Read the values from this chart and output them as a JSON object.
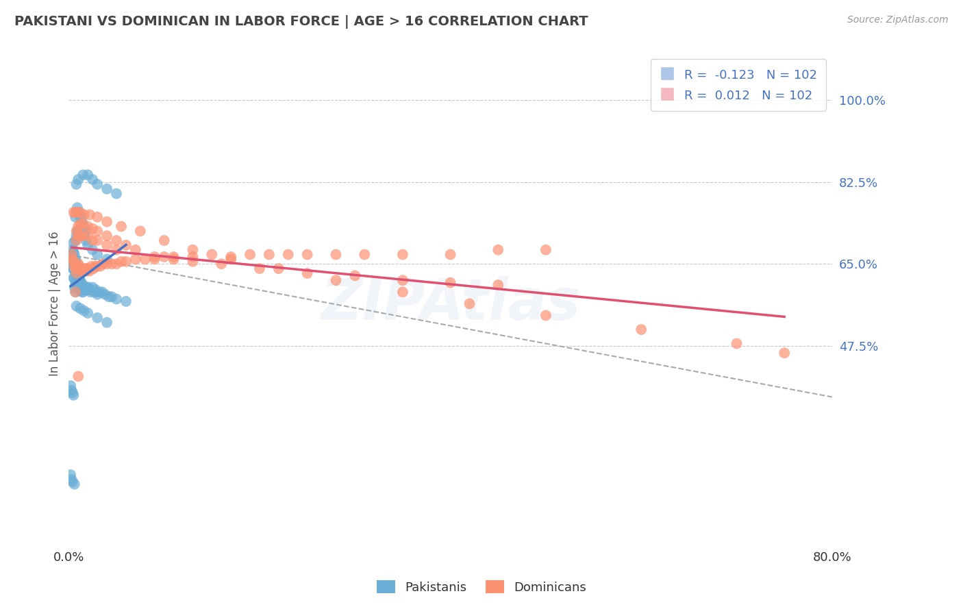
{
  "title": "PAKISTANI VS DOMINICAN IN LABOR FORCE | AGE > 16 CORRELATION CHART",
  "source": "Source: ZipAtlas.com",
  "ylabel": "In Labor Force | Age > 16",
  "xlim": [
    0.0,
    0.8
  ],
  "ylim": [
    0.05,
    1.08
  ],
  "yticks": [
    0.475,
    0.65,
    0.825,
    1.0
  ],
  "ytick_labels": [
    "47.5%",
    "65.0%",
    "82.5%",
    "100.0%"
  ],
  "xticks": [
    0.0,
    0.8
  ],
  "xtick_labels": [
    "0.0%",
    "80.0%"
  ],
  "pakistani_color": "#6baed6",
  "dominican_color": "#fc9272",
  "pakistani_R": -0.123,
  "pakistani_N": 102,
  "dominican_R": 0.012,
  "dominican_N": 102,
  "background_color": "#ffffff",
  "grid_color": "#c8c8c8",
  "title_color": "#444444",
  "label_color": "#4472c4",
  "pakistani_x": [
    0.003,
    0.003,
    0.004,
    0.004,
    0.004,
    0.005,
    0.005,
    0.005,
    0.005,
    0.005,
    0.006,
    0.006,
    0.006,
    0.006,
    0.006,
    0.007,
    0.007,
    0.007,
    0.007,
    0.007,
    0.008,
    0.008,
    0.008,
    0.008,
    0.009,
    0.009,
    0.009,
    0.01,
    0.01,
    0.01,
    0.011,
    0.011,
    0.012,
    0.012,
    0.013,
    0.013,
    0.014,
    0.015,
    0.015,
    0.016,
    0.017,
    0.018,
    0.019,
    0.02,
    0.021,
    0.022,
    0.023,
    0.025,
    0.027,
    0.028,
    0.03,
    0.032,
    0.035,
    0.038,
    0.042,
    0.045,
    0.05,
    0.06,
    0.007,
    0.008,
    0.009,
    0.01,
    0.012,
    0.014,
    0.016,
    0.018,
    0.02,
    0.025,
    0.03,
    0.04,
    0.007,
    0.008,
    0.009,
    0.01,
    0.012,
    0.014,
    0.016,
    0.018,
    0.008,
    0.01,
    0.015,
    0.02,
    0.025,
    0.03,
    0.04,
    0.05,
    0.008,
    0.012,
    0.016,
    0.02,
    0.03,
    0.04,
    0.002,
    0.003,
    0.004,
    0.005,
    0.002,
    0.003,
    0.004,
    0.006
  ],
  "pakistani_y": [
    0.655,
    0.67,
    0.64,
    0.66,
    0.68,
    0.62,
    0.64,
    0.66,
    0.675,
    0.695,
    0.6,
    0.62,
    0.64,
    0.655,
    0.67,
    0.59,
    0.61,
    0.63,
    0.645,
    0.66,
    0.61,
    0.625,
    0.64,
    0.655,
    0.6,
    0.615,
    0.635,
    0.6,
    0.62,
    0.64,
    0.6,
    0.615,
    0.595,
    0.615,
    0.595,
    0.61,
    0.59,
    0.59,
    0.605,
    0.6,
    0.595,
    0.595,
    0.6,
    0.595,
    0.6,
    0.595,
    0.59,
    0.6,
    0.59,
    0.595,
    0.585,
    0.59,
    0.59,
    0.585,
    0.58,
    0.58,
    0.575,
    0.57,
    0.7,
    0.71,
    0.72,
    0.72,
    0.72,
    0.71,
    0.71,
    0.7,
    0.69,
    0.68,
    0.67,
    0.66,
    0.75,
    0.76,
    0.77,
    0.76,
    0.75,
    0.74,
    0.73,
    0.72,
    0.82,
    0.83,
    0.84,
    0.84,
    0.83,
    0.82,
    0.81,
    0.8,
    0.56,
    0.555,
    0.55,
    0.545,
    0.535,
    0.525,
    0.39,
    0.38,
    0.375,
    0.37,
    0.2,
    0.19,
    0.185,
    0.18
  ],
  "dominican_x": [
    0.003,
    0.004,
    0.005,
    0.006,
    0.007,
    0.008,
    0.009,
    0.01,
    0.011,
    0.012,
    0.013,
    0.014,
    0.015,
    0.016,
    0.017,
    0.018,
    0.019,
    0.02,
    0.022,
    0.024,
    0.026,
    0.028,
    0.03,
    0.033,
    0.036,
    0.04,
    0.045,
    0.05,
    0.055,
    0.06,
    0.07,
    0.08,
    0.09,
    0.1,
    0.11,
    0.13,
    0.15,
    0.17,
    0.19,
    0.21,
    0.23,
    0.25,
    0.28,
    0.31,
    0.35,
    0.4,
    0.45,
    0.5,
    0.008,
    0.01,
    0.012,
    0.015,
    0.02,
    0.025,
    0.03,
    0.04,
    0.05,
    0.008,
    0.01,
    0.012,
    0.015,
    0.02,
    0.025,
    0.03,
    0.04,
    0.05,
    0.06,
    0.07,
    0.09,
    0.11,
    0.13,
    0.16,
    0.2,
    0.25,
    0.3,
    0.35,
    0.4,
    0.45,
    0.007,
    0.009,
    0.012,
    0.016,
    0.022,
    0.03,
    0.04,
    0.055,
    0.075,
    0.1,
    0.13,
    0.17,
    0.22,
    0.28,
    0.35,
    0.42,
    0.5,
    0.6,
    0.7,
    0.75,
    0.005,
    0.007,
    0.01
  ],
  "dominican_y": [
    0.67,
    0.66,
    0.655,
    0.645,
    0.64,
    0.63,
    0.64,
    0.65,
    0.645,
    0.64,
    0.635,
    0.64,
    0.635,
    0.64,
    0.635,
    0.64,
    0.635,
    0.64,
    0.635,
    0.645,
    0.64,
    0.645,
    0.645,
    0.645,
    0.65,
    0.65,
    0.65,
    0.65,
    0.655,
    0.655,
    0.66,
    0.66,
    0.665,
    0.665,
    0.665,
    0.665,
    0.67,
    0.665,
    0.67,
    0.67,
    0.67,
    0.67,
    0.67,
    0.67,
    0.67,
    0.67,
    0.68,
    0.68,
    0.7,
    0.71,
    0.71,
    0.71,
    0.71,
    0.7,
    0.7,
    0.69,
    0.68,
    0.72,
    0.73,
    0.735,
    0.735,
    0.73,
    0.725,
    0.72,
    0.71,
    0.7,
    0.69,
    0.68,
    0.66,
    0.66,
    0.655,
    0.65,
    0.64,
    0.63,
    0.625,
    0.615,
    0.61,
    0.605,
    0.76,
    0.76,
    0.76,
    0.755,
    0.755,
    0.75,
    0.74,
    0.73,
    0.72,
    0.7,
    0.68,
    0.66,
    0.64,
    0.615,
    0.59,
    0.565,
    0.54,
    0.51,
    0.48,
    0.46,
    0.76,
    0.59,
    0.41
  ]
}
